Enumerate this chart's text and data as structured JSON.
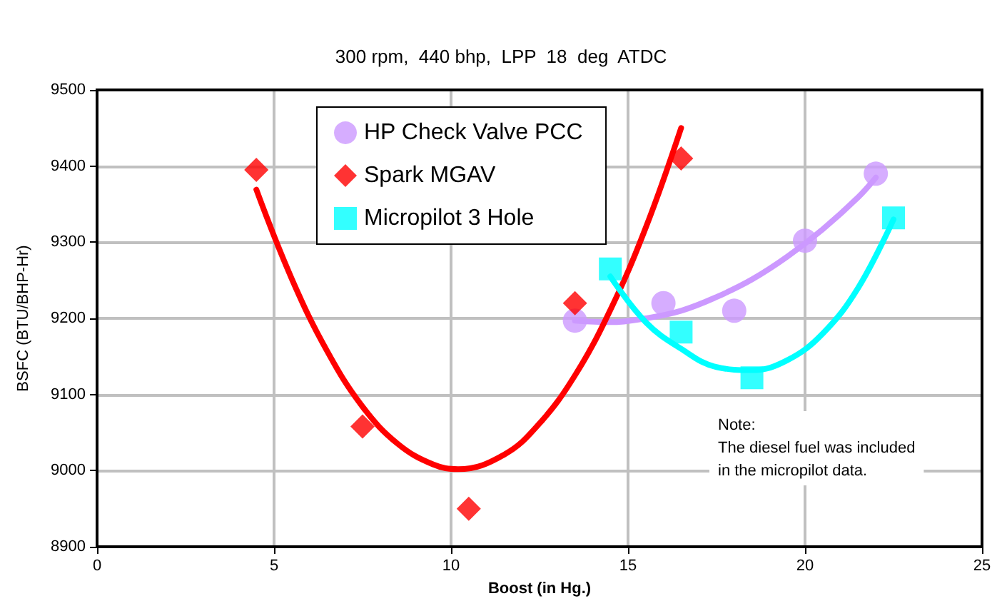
{
  "chart_data": {
    "type": "scatter",
    "title": "300 rpm,  440 bhp,  LPP  18  deg  ATDC",
    "xlabel": "Boost (in Hg.)",
    "ylabel": "BSFC (BTU/BHP-Hr)",
    "xlim": [
      0,
      25
    ],
    "xticks": [
      0,
      5,
      10,
      15,
      20,
      25
    ],
    "ylim": [
      8900,
      9500
    ],
    "yticks": [
      8900,
      9000,
      9100,
      9200,
      9300,
      9400,
      9500
    ],
    "grid": true,
    "legend": "top left",
    "annotations": [
      "Note:\nThe diesel fuel was included\nin the micropilot data."
    ],
    "series": [
      {
        "name": "HP Check Valve PCC",
        "color": "#cc99ff",
        "marker": "circle",
        "x": [
          13.5,
          16,
          18,
          20,
          22
        ],
        "values": [
          9197,
          9220,
          9210,
          9302,
          9390
        ]
      },
      {
        "name": "Spark MGAV",
        "color": "#ff0000",
        "marker": "diamond",
        "x": [
          4.5,
          7.5,
          10.5,
          13.5,
          16.5
        ],
        "values": [
          9395,
          9058,
          8950,
          9220,
          9410
        ]
      },
      {
        "name": "Micropilot 3 Hole",
        "color": "#00ffff",
        "marker": "square",
        "x": [
          14.5,
          16.5,
          18.5,
          22.5
        ],
        "values": [
          9265,
          9182,
          9122,
          9332
        ]
      },
      {
        "type": "line",
        "color": "#cc99ff",
        "line_style": "solid",
        "marker": "none",
        "x": [
          13.5,
          14.5,
          15.5,
          16.5,
          17.5,
          18.5,
          19.5,
          20.5,
          21.5,
          22
        ],
        "values": [
          9197,
          9195,
          9200,
          9210,
          9228,
          9251,
          9281,
          9317,
          9359,
          9385
        ]
      },
      {
        "type": "line",
        "color": "#ff0000",
        "line_style": "solid",
        "marker": "none",
        "x": [
          4.5,
          5.5,
          6.5,
          7.5,
          8.5,
          9.5,
          10.2,
          11.5,
          12.5,
          13.5,
          14.5,
          15.5,
          16.5
        ],
        "values": [
          9369,
          9252,
          9157,
          9084,
          9035,
          9008,
          9002,
          9021,
          9062,
          9125,
          9211,
          9319,
          9450
        ]
      },
      {
        "type": "line",
        "color": "#00ffff",
        "line_style": "solid",
        "marker": "none",
        "x": [
          14.5,
          15.5,
          16.5,
          17.5,
          18.5,
          19.5,
          20.5,
          21.5,
          22.5
        ],
        "values": [
          9255,
          9195,
          9160,
          9136,
          9132,
          9145,
          9180,
          9240,
          9330
        ]
      }
    ]
  }
}
